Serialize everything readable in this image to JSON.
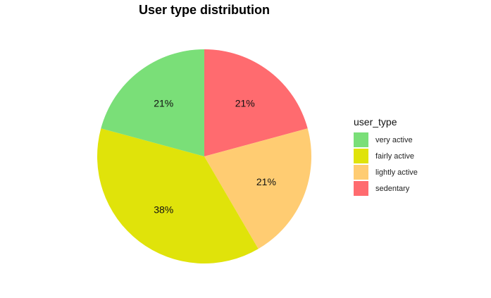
{
  "chart_data": {
    "type": "pie",
    "title": "User type distribution",
    "legend_title": "user_type",
    "legend_placement": "right",
    "slices": [
      {
        "name": "sedentary",
        "value": 21,
        "label": "21%",
        "color": "#FF6B6F"
      },
      {
        "name": "lightly active",
        "value": 21,
        "label": "21%",
        "color": "#FFCC72"
      },
      {
        "name": "fairly active",
        "value": 38,
        "label": "38%",
        "color": "#E0E30A"
      },
      {
        "name": "very active",
        "value": 21,
        "label": "21%",
        "color": "#7ADF78"
      }
    ],
    "legend_order": [
      "very active",
      "fairly active",
      "lightly active",
      "sedentary"
    ]
  }
}
